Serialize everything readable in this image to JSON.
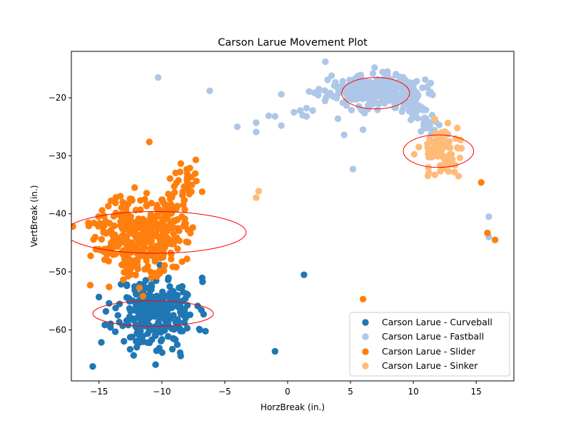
{
  "chart_data": {
    "type": "scatter",
    "title": "Carson Larue Movement Plot",
    "xlabel": "HorzBreak (in.)",
    "ylabel": "VertBreak (in.)",
    "xlim": [
      -17.2,
      18.0
    ],
    "ylim": [
      -68.8,
      -12.0
    ],
    "xticks": [
      -15,
      -10,
      -5,
      0,
      5,
      10,
      15
    ],
    "yticks": [
      -60,
      -50,
      -40,
      -30,
      -20
    ],
    "xtick_labels": [
      "−15",
      "−10",
      "−5",
      "0",
      "5",
      "10",
      "15"
    ],
    "ytick_labels": [
      "−60",
      "−50",
      "−40",
      "−30",
      "−20"
    ],
    "grid": false,
    "legend_position": "lower-right",
    "series": [
      {
        "name": "Carson Larue - Curveball",
        "color": "#1f77b4",
        "cluster": {
          "cx": -10.5,
          "cy": -57.0,
          "sx": 1.6,
          "sy": 3.0,
          "n": 260,
          "seed": 11
        },
        "outliers": [
          [
            -15.5,
            -66.3
          ],
          [
            -10.5,
            -66.0
          ],
          [
            -1.0,
            -63.7
          ],
          [
            1.3,
            -50.5
          ],
          [
            -8.5,
            -64.5
          ],
          [
            -12.0,
            -63.0
          ],
          [
            -13.5,
            -57.5
          ],
          [
            -8.3,
            -53.5
          ]
        ]
      },
      {
        "name": "Carson Larue - Fastball",
        "color": "#aec7e8",
        "cluster": {
          "cx": 7.0,
          "cy": -18.8,
          "sx": 1.8,
          "sy": 1.3,
          "n": 330,
          "seed": 23
        },
        "tail": {
          "from": [
            9.5,
            -21.0
          ],
          "to": [
            12.5,
            -27.0
          ],
          "n": 45,
          "jitter": 0.9,
          "seed": 5
        },
        "outliers": [
          [
            -10.3,
            -16.5
          ],
          [
            -6.2,
            -18.8
          ],
          [
            -4.0,
            -25.0
          ],
          [
            -2.5,
            -24.3
          ],
          [
            -2.5,
            -25.9
          ],
          [
            -1.0,
            -23.2
          ],
          [
            -0.5,
            -24.8
          ],
          [
            -0.5,
            -19.4
          ],
          [
            0.5,
            -22.5
          ],
          [
            1.0,
            -22.2
          ],
          [
            1.5,
            -23.2
          ],
          [
            1.5,
            -21.8
          ],
          [
            2.0,
            -22.2
          ],
          [
            1.2,
            -23.0
          ],
          [
            -1.5,
            -23.1
          ],
          [
            3.0,
            -13.8
          ],
          [
            3.5,
            -16.2
          ],
          [
            4.5,
            -26.4
          ],
          [
            5.2,
            -32.3
          ],
          [
            6.0,
            -25.5
          ],
          [
            4.0,
            -23.6
          ],
          [
            9.8,
            -23.8
          ],
          [
            16.0,
            -40.5
          ],
          [
            16.0,
            -44.0
          ],
          [
            11.5,
            -23.0
          ],
          [
            10.2,
            -21.5
          ]
        ]
      },
      {
        "name": "Carson Larue - Slider",
        "color": "#ff7f0e",
        "cluster": {
          "cx": -11.8,
          "cy": -43.5,
          "sx": 1.7,
          "sy": 3.3,
          "n": 340,
          "seed": 37
        },
        "tail": {
          "from": [
            -10.0,
            -41.0
          ],
          "to": [
            -7.5,
            -32.5
          ],
          "n": 60,
          "jitter": 1.0,
          "seed": 9
        },
        "outliers": [
          [
            -11.0,
            -27.6
          ],
          [
            -7.3,
            -30.7
          ],
          [
            -15.7,
            -52.3
          ],
          [
            -14.2,
            -52.6
          ],
          [
            -10.4,
            -50.8
          ],
          [
            -10.9,
            -50.0
          ],
          [
            -11.5,
            -54.2
          ],
          [
            6.0,
            -54.7
          ],
          [
            15.4,
            -34.6
          ],
          [
            15.9,
            -43.3
          ],
          [
            16.5,
            -44.5
          ],
          [
            -6.8,
            -36.2
          ],
          [
            -8.0,
            -34.0
          ]
        ]
      },
      {
        "name": "Carson Larue - Sinker",
        "color": "#ffbb78",
        "cluster": {
          "cx": 12.2,
          "cy": -28.7,
          "sx": 0.8,
          "sy": 2.0,
          "n": 85,
          "seed": 53
        },
        "outliers": [
          [
            -2.5,
            -37.2
          ],
          [
            -2.3,
            -36.1
          ],
          [
            13.6,
            -33.5
          ],
          [
            13.5,
            -25.2
          ],
          [
            13.2,
            -31.5
          ],
          [
            11.2,
            -32.0
          ],
          [
            13.0,
            -30.5
          ]
        ]
      }
    ],
    "ellipses": [
      {
        "cx": 7.0,
        "cy": -19.2,
        "rx": 2.7,
        "ry": 2.7,
        "color": "#ff0000"
      },
      {
        "cx": 12.0,
        "cy": -29.2,
        "rx": 2.8,
        "ry": 2.8,
        "color": "#ff0000"
      },
      {
        "cx": -10.5,
        "cy": -43.2,
        "rx": 7.2,
        "ry": 3.6,
        "color": "#ff0000"
      },
      {
        "cx": -10.7,
        "cy": -57.2,
        "rx": 4.8,
        "ry": 2.2,
        "color": "#ff0000"
      }
    ]
  }
}
